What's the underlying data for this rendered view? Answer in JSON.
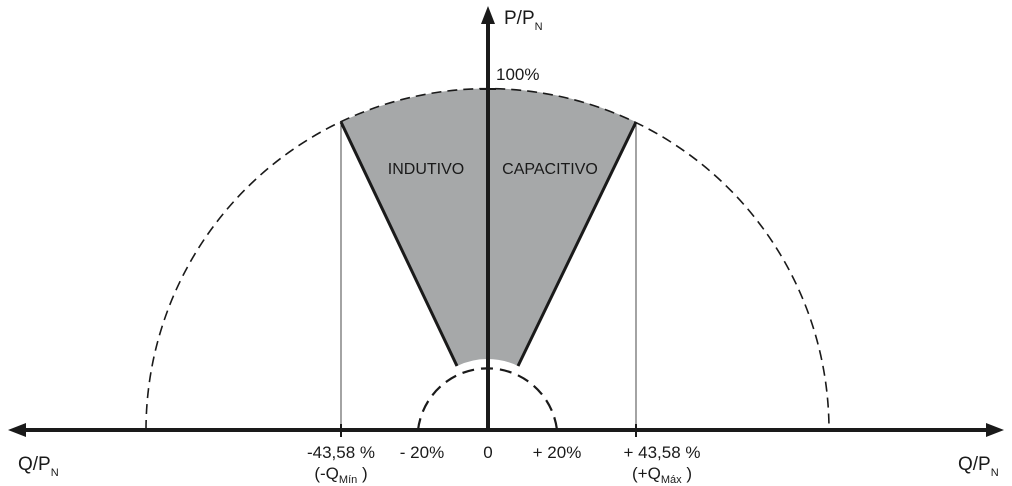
{
  "diagram": {
    "y_axis_label": {
      "main": "P/P",
      "sub": "N"
    },
    "x_axis_label_left": {
      "main": "Q/P",
      "sub": "N"
    },
    "x_axis_label_right": {
      "main": "Q/P",
      "sub": "N"
    },
    "top_value": "100%",
    "region_left": "INDUTIVO",
    "region_right": "CAPACITIVO",
    "ticks": {
      "neg_max": "-43,58 %",
      "neg_min": "- 20%",
      "zero": "0",
      "pos_min": "+ 20%",
      "pos_max": "+ 43,58 %"
    },
    "q_min": {
      "pre": "(-Q",
      "sub": "Mín",
      "post": " )"
    },
    "q_max": {
      "pre": "(+Q",
      "sub": "Máx",
      "post": " )"
    },
    "colors": {
      "sector_fill": "#a6a8a9",
      "line": "#1a1a1a"
    }
  }
}
